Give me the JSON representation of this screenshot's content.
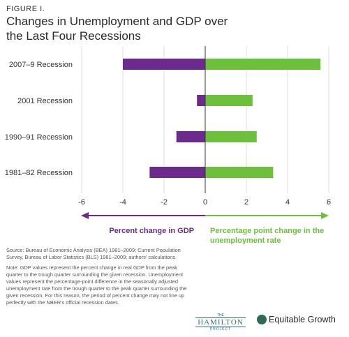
{
  "figure_label": "FIGURE I.",
  "title": "Changes in Unemployment and GDP over the Last Four Recessions",
  "left_arrow_label": "Percent change in GDP",
  "right_arrow_label": "Percentage point change in the unemployment rate",
  "source_note": "Source: Bureau of Economic Analysis (BEA) 1981–2009; Current Population Survey, Bureau of Labor Statistics (BLS) 1981–2009; authors' calculations.",
  "method_note": "Note: GDP values represent the percent change in real GDP from the peak quarter to the trough quarter surrounding the given recession. Unemployment values represent the percentage-point difference in the seasonally adjusted unemployment rate from the trough quarter to the peak quarter surrounding the given recession. For this reason, the period of percent change may not line up perfectly with the NBER's official recession dates.",
  "logos": {
    "hamilton_the": "THE",
    "hamilton_name": "HAMILTON",
    "hamilton_project": "PROJECT",
    "equitable": "Equitable Growth"
  },
  "colors": {
    "gdp": "#6b2a8c",
    "unemployment": "#6cc03c"
  },
  "chart_data": {
    "type": "bar",
    "orientation": "horizontal",
    "categories": [
      "2007–9 Recession",
      "2001 Recession",
      "1990–91 Recession",
      "1981–82 Recession"
    ],
    "series": [
      {
        "name": "Percent change in GDP",
        "values": [
          -4.0,
          -0.4,
          -1.4,
          -2.7
        ]
      },
      {
        "name": "Percentage point change in the unemployment rate",
        "values": [
          5.6,
          2.3,
          2.5,
          3.3
        ]
      }
    ],
    "xlim": [
      -6,
      6
    ],
    "xticks": [
      "-6",
      "-4",
      "-2",
      "0",
      "2",
      "4",
      "6"
    ],
    "xtick_values": [
      -6,
      -4,
      -2,
      0,
      2,
      4,
      6
    ],
    "grid": "vertical"
  }
}
